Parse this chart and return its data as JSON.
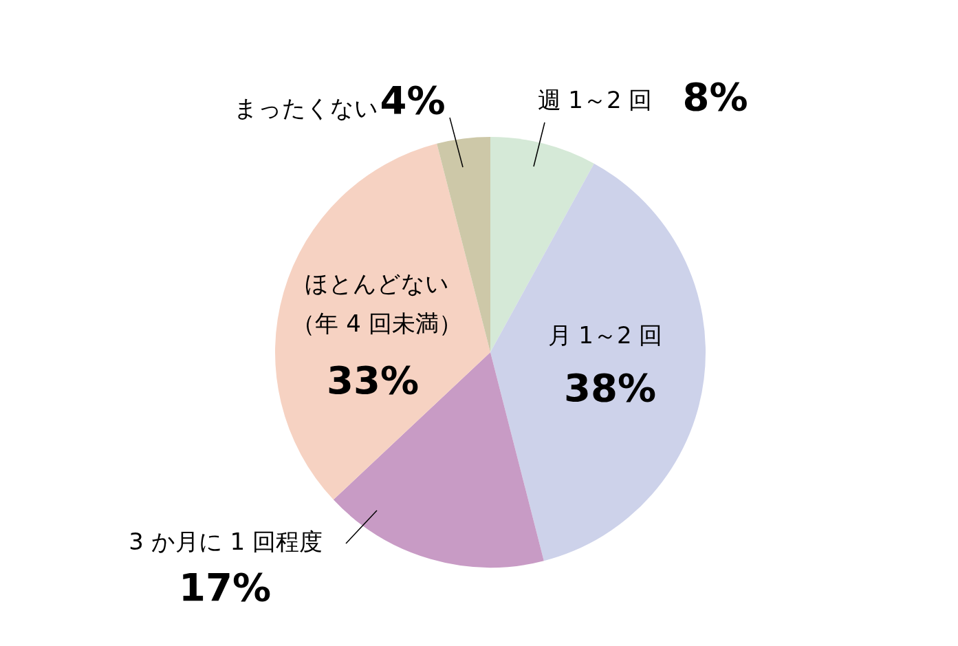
{
  "chart_data": {
    "type": "pie",
    "categories": [
      "週 1～2 回",
      "月 1～2 回",
      "3 か月に 1 回程度",
      "ほとんどない（年 4 回未満）",
      "まったくない"
    ],
    "values": [
      8,
      38,
      17,
      33,
      4
    ],
    "value_labels": [
      "8%",
      "38%",
      "17%",
      "33%",
      "4%"
    ],
    "colors": [
      "#d5e9d7",
      "#cdd2ea",
      "#c89bc5",
      "#f6d2c2",
      "#cdc8a8"
    ],
    "legend": false
  }
}
